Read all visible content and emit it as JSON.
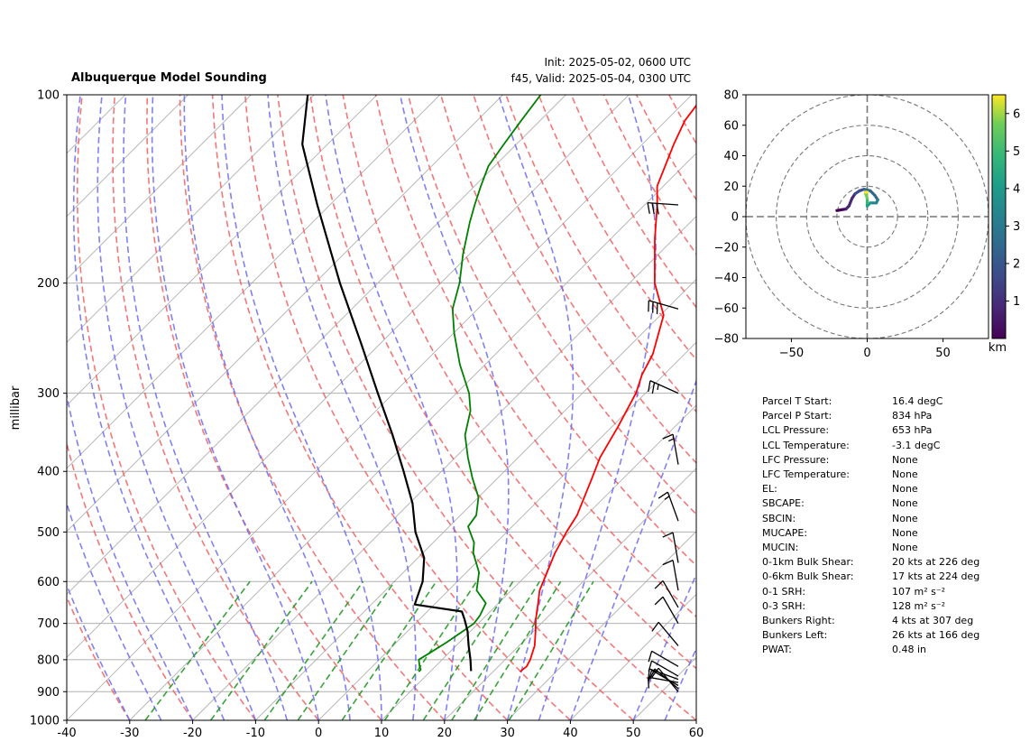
{
  "header": {
    "title": "Albuquerque Model Sounding",
    "init": "Init: 2025-05-02, 0600 UTC",
    "valid": "f45, Valid: 2025-05-04, 0300 UTC"
  },
  "chart_data": [
    {
      "type": "line",
      "subtype": "skew-t log-p",
      "ylabel": "millibar",
      "x_ticks": [
        -40,
        -30,
        -20,
        -10,
        0,
        10,
        20,
        30,
        40,
        50,
        60
      ],
      "y_ticks": [
        100,
        200,
        300,
        400,
        500,
        600,
        700,
        800,
        900,
        1000
      ],
      "xlim": [
        -40,
        60
      ],
      "ylim": [
        1000,
        100
      ],
      "y_scale": "log",
      "series": [
        {
          "color": "#ff0000",
          "points": [
            [
              836,
              24.3
            ],
            [
              820,
              24.5
            ],
            [
              800,
              24.0
            ],
            [
              760,
              22.5
            ],
            [
              720,
              20.3
            ],
            [
              690,
              18.5
            ],
            [
              650,
              16.3
            ],
            [
              620,
              14.5
            ],
            [
              580,
              12.8
            ],
            [
              540,
              11.0
            ],
            [
              500,
              9.5
            ],
            [
              470,
              8.5
            ],
            [
              440,
              6.8
            ],
            [
              410,
              5.0
            ],
            [
              380,
              3.0
            ],
            [
              340,
              1.0
            ],
            [
              300,
              -1.5
            ],
            [
              280,
              -3.5
            ],
            [
              260,
              -5.0
            ],
            [
              240,
              -7.5
            ],
            [
              225,
              -9.5
            ],
            [
              200,
              -16.0
            ],
            [
              170,
              -23.0
            ],
            [
              150,
              -28.0
            ],
            [
              140,
              -31.0
            ],
            [
              120,
              -35.0
            ],
            [
              110,
              -37.0
            ],
            [
              100,
              -38.0
            ]
          ]
        },
        {
          "color": "#008000",
          "points": [
            [
              836,
              8.2
            ],
            [
              830,
              8.2
            ],
            [
              820,
              7.5
            ],
            [
              800,
              6.3
            ],
            [
              780,
              7.0
            ],
            [
              750,
              8.0
            ],
            [
              720,
              8.8
            ],
            [
              700,
              9.3
            ],
            [
              680,
              9.0
            ],
            [
              650,
              8.0
            ],
            [
              620,
              4.5
            ],
            [
              580,
              2.0
            ],
            [
              540,
              -2.0
            ],
            [
              520,
              -3.5
            ],
            [
              490,
              -7.0
            ],
            [
              470,
              -7.5
            ],
            [
              440,
              -10.0
            ],
            [
              410,
              -14.0
            ],
            [
              380,
              -18.0
            ],
            [
              350,
              -22.0
            ],
            [
              320,
              -25.0
            ],
            [
              300,
              -28.0
            ],
            [
              270,
              -34.0
            ],
            [
              240,
              -40.0
            ],
            [
              220,
              -44.0
            ],
            [
              200,
              -47.0
            ],
            [
              180,
              -51.0
            ],
            [
              160,
              -55.0
            ],
            [
              150,
              -57.0
            ],
            [
              140,
              -59.0
            ],
            [
              130,
              -61.0
            ],
            [
              120,
              -62.0
            ],
            [
              110,
              -63.0
            ],
            [
              100,
              -64.0
            ]
          ]
        },
        {
          "color": "#000000",
          "points": [
            [
              834,
              16.4
            ],
            [
              800,
              14.5
            ],
            [
              760,
              12.0
            ],
            [
              720,
              9.5
            ],
            [
              690,
              7.2
            ],
            [
              670,
              5.5
            ],
            [
              653,
              -3.1
            ],
            [
              600,
              -5.5
            ],
            [
              550,
              -9.0
            ],
            [
              500,
              -14.5
            ],
            [
              450,
              -19.5
            ],
            [
              400,
              -26.0
            ],
            [
              350,
              -33.5
            ],
            [
              300,
              -42.5
            ],
            [
              250,
              -53.0
            ],
            [
              200,
              -66.0
            ],
            [
              150,
              -82.0
            ],
            [
              120,
              -94.0
            ],
            [
              100,
              -101.0
            ]
          ]
        }
      ],
      "wind_barbs": [
        {
          "p": 150,
          "speed": 30,
          "dir": 274
        },
        {
          "p": 220,
          "speed": 30,
          "dir": 286
        },
        {
          "p": 300,
          "speed": 25,
          "dir": 294
        },
        {
          "p": 390,
          "speed": 15,
          "dir": 350
        },
        {
          "p": 480,
          "speed": 15,
          "dir": 340
        },
        {
          "p": 560,
          "speed": 10,
          "dir": 350
        },
        {
          "p": 620,
          "speed": 10,
          "dir": 350
        },
        {
          "p": 660,
          "speed": 10,
          "dir": 330
        },
        {
          "p": 700,
          "speed": 10,
          "dir": 330
        },
        {
          "p": 760,
          "speed": 10,
          "dir": 320
        },
        {
          "p": 820,
          "speed": 10,
          "dir": 300
        },
        {
          "p": 850,
          "speed": 10,
          "dir": 300
        },
        {
          "p": 860,
          "speed": 10,
          "dir": 290
        },
        {
          "p": 870,
          "speed": 10,
          "dir": 280
        },
        {
          "p": 880,
          "speed": 10,
          "dir": 300
        },
        {
          "p": 890,
          "speed": 10,
          "dir": 310
        },
        {
          "p": 900,
          "speed": 10,
          "dir": 320
        }
      ]
    },
    {
      "type": "line",
      "subtype": "hodograph",
      "xlim": [
        -80,
        80
      ],
      "ylim": [
        -80,
        80
      ],
      "x_ticks": [
        -50,
        0,
        50
      ],
      "y_ticks": [
        -80,
        -60,
        -40,
        -20,
        0,
        20,
        40,
        60,
        80
      ],
      "rings": [
        20,
        40,
        60,
        80
      ],
      "colorbar": {
        "label": "km",
        "ticks": [
          1,
          2,
          3,
          4,
          5,
          6
        ],
        "range": [
          0,
          6.5
        ],
        "cmap": "viridis"
      },
      "points": [
        [
          -20,
          4,
          0.0
        ],
        [
          -14,
          5,
          0.3
        ],
        [
          -12,
          7,
          0.5
        ],
        [
          -10,
          12,
          0.8
        ],
        [
          -8,
          15,
          1.1
        ],
        [
          -5,
          17,
          1.4
        ],
        [
          -2,
          18,
          1.7
        ],
        [
          2,
          17,
          2.0
        ],
        [
          5,
          14,
          2.3
        ],
        [
          7,
          11,
          2.6
        ],
        [
          6,
          9,
          2.9
        ],
        [
          2,
          9,
          3.2
        ],
        [
          0,
          7,
          3.6
        ],
        [
          0,
          9,
          4.0
        ],
        [
          0,
          12,
          4.5
        ],
        [
          -1,
          15,
          5.0
        ],
        [
          -1,
          16,
          5.5
        ],
        [
          0,
          16,
          6.0
        ],
        [
          -1,
          16,
          6.4
        ]
      ]
    }
  ],
  "parameters": [
    {
      "label": "Parcel T Start:",
      "value": "16.4 degC"
    },
    {
      "label": "Parcel P Start:",
      "value": "834 hPa"
    },
    {
      "label": "LCL Pressure:",
      "value": "653 hPa"
    },
    {
      "label": "LCL Temperature:",
      "value": "-3.1 degC"
    },
    {
      "label": "LFC Pressure:",
      "value": "None"
    },
    {
      "label": "LFC Temperature:",
      "value": "None"
    },
    {
      "label": "EL:",
      "value": "None"
    },
    {
      "label": "SBCAPE:",
      "value": "None"
    },
    {
      "label": "SBCIN:",
      "value": "None"
    },
    {
      "label": "MUCAPE:",
      "value": "None"
    },
    {
      "label": "MUCIN:",
      "value": "None"
    },
    {
      "label": "0-1km Bulk Shear:",
      "value": "20 kts at 226 deg"
    },
    {
      "label": "0-6km Bulk Shear:",
      "value": "17 kts at 224 deg"
    },
    {
      "label": "0-1 SRH:",
      "value": "107 m² s⁻²"
    },
    {
      "label": "0-3 SRH:",
      "value": "128 m² s⁻²"
    },
    {
      "label": "Bunkers Right:",
      "value": "4 kts at 307 deg"
    },
    {
      "label": "Bunkers Left:",
      "value": "26 kts at 166 deg"
    },
    {
      "label": "PWAT:",
      "value": "0.48 in"
    }
  ]
}
